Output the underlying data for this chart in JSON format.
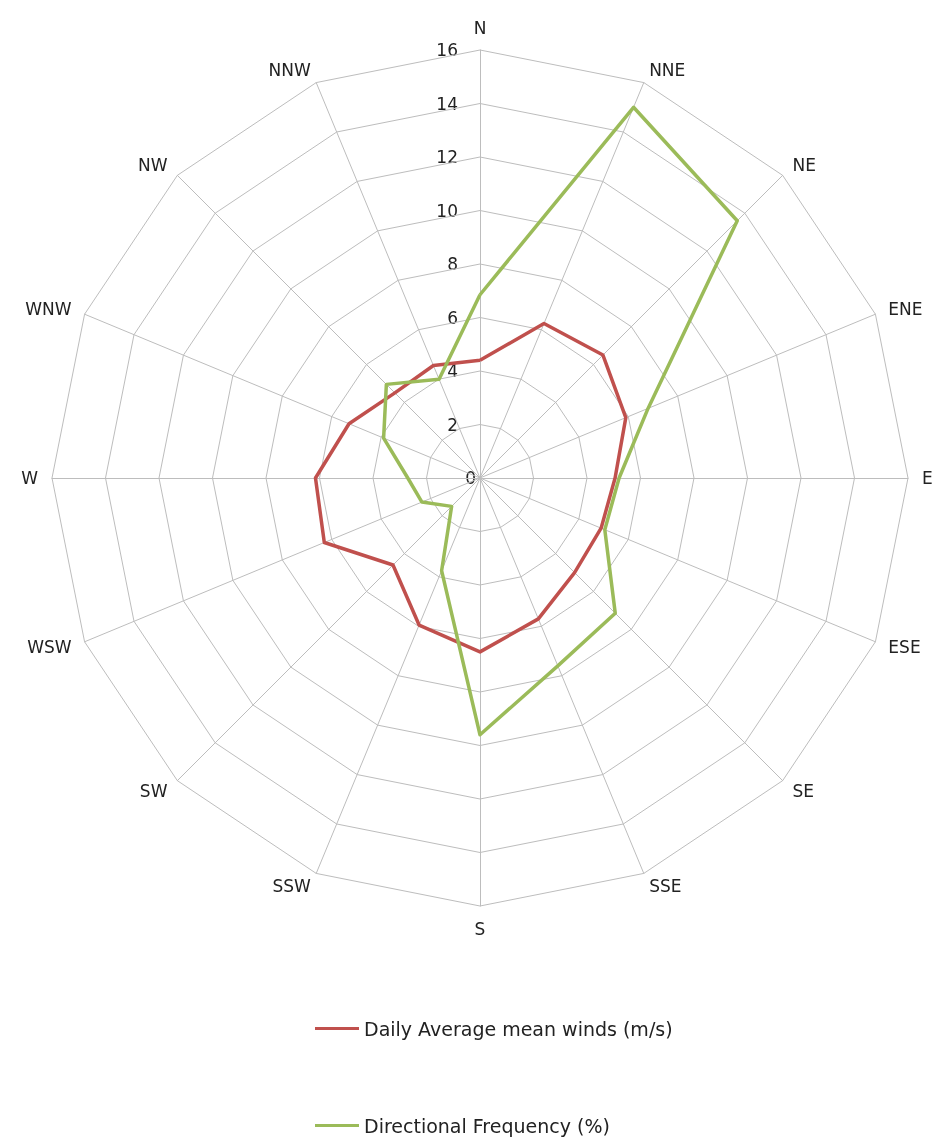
{
  "chart_data": {
    "type": "radar",
    "categories": [
      "N",
      "NNE",
      "NE",
      "ENE",
      "E",
      "ESE",
      "SE",
      "SSE",
      "S",
      "SSW",
      "SW",
      "WSW",
      "W",
      "WNW",
      "NW",
      "NNW"
    ],
    "series": [
      {
        "name": "Daily Average mean winds (m/s)",
        "color": "#c0504d",
        "values": [
          4.4,
          6.25,
          6.5,
          5.9,
          5.05,
          4.9,
          5.0,
          5.7,
          6.5,
          5.95,
          4.6,
          6.3,
          6.15,
          5.3,
          4.5,
          4.55
        ]
      },
      {
        "name": "Directional Frequency (%)",
        "color": "#9bbb59",
        "values": [
          6.85,
          15.0,
          13.6,
          6.8,
          5.2,
          5.05,
          7.15,
          7.6,
          9.6,
          3.75,
          1.5,
          2.35,
          2.7,
          3.9,
          4.95,
          4.0
        ]
      }
    ],
    "ylim": [
      0,
      16
    ],
    "yticks": [
      0,
      2,
      4,
      6,
      8,
      10,
      12,
      14,
      16
    ],
    "grid": true,
    "legend": "bottom",
    "marker": "none"
  }
}
